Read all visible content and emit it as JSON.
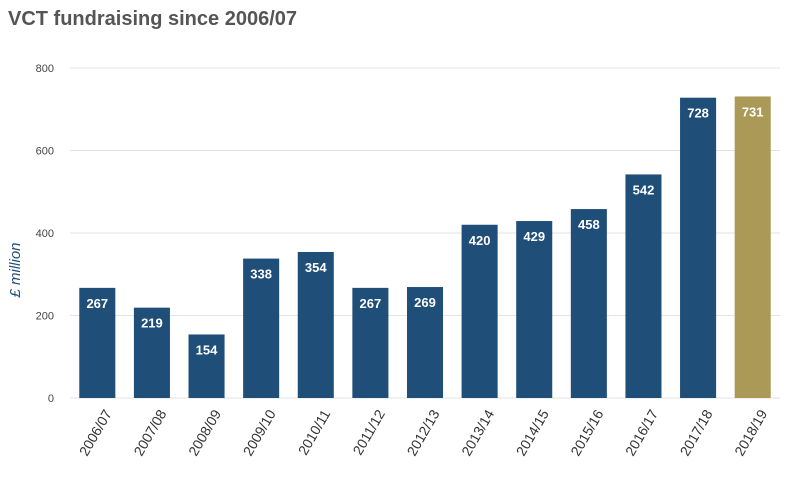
{
  "chart_data": {
    "type": "bar",
    "title": "VCT fundraising since 2006/07",
    "ylabel": "£ million",
    "xlabel": "",
    "ylim": [
      0,
      800
    ],
    "yticks": [
      0,
      200,
      400,
      600,
      800
    ],
    "grid": true,
    "categories": [
      "2006/07",
      "2007/08",
      "2008/09",
      "2009/10",
      "2010/11",
      "2011/12",
      "2012/13",
      "2013/14",
      "2014/15",
      "2015/16",
      "2016/17",
      "2017/18",
      "2018/19"
    ],
    "values": [
      267,
      219,
      154,
      338,
      354,
      267,
      269,
      420,
      429,
      458,
      542,
      728,
      731
    ],
    "colors": {
      "bar": "#1f4e79",
      "highlight": "#ab9a57"
    },
    "highlight_category": "2018/19"
  }
}
